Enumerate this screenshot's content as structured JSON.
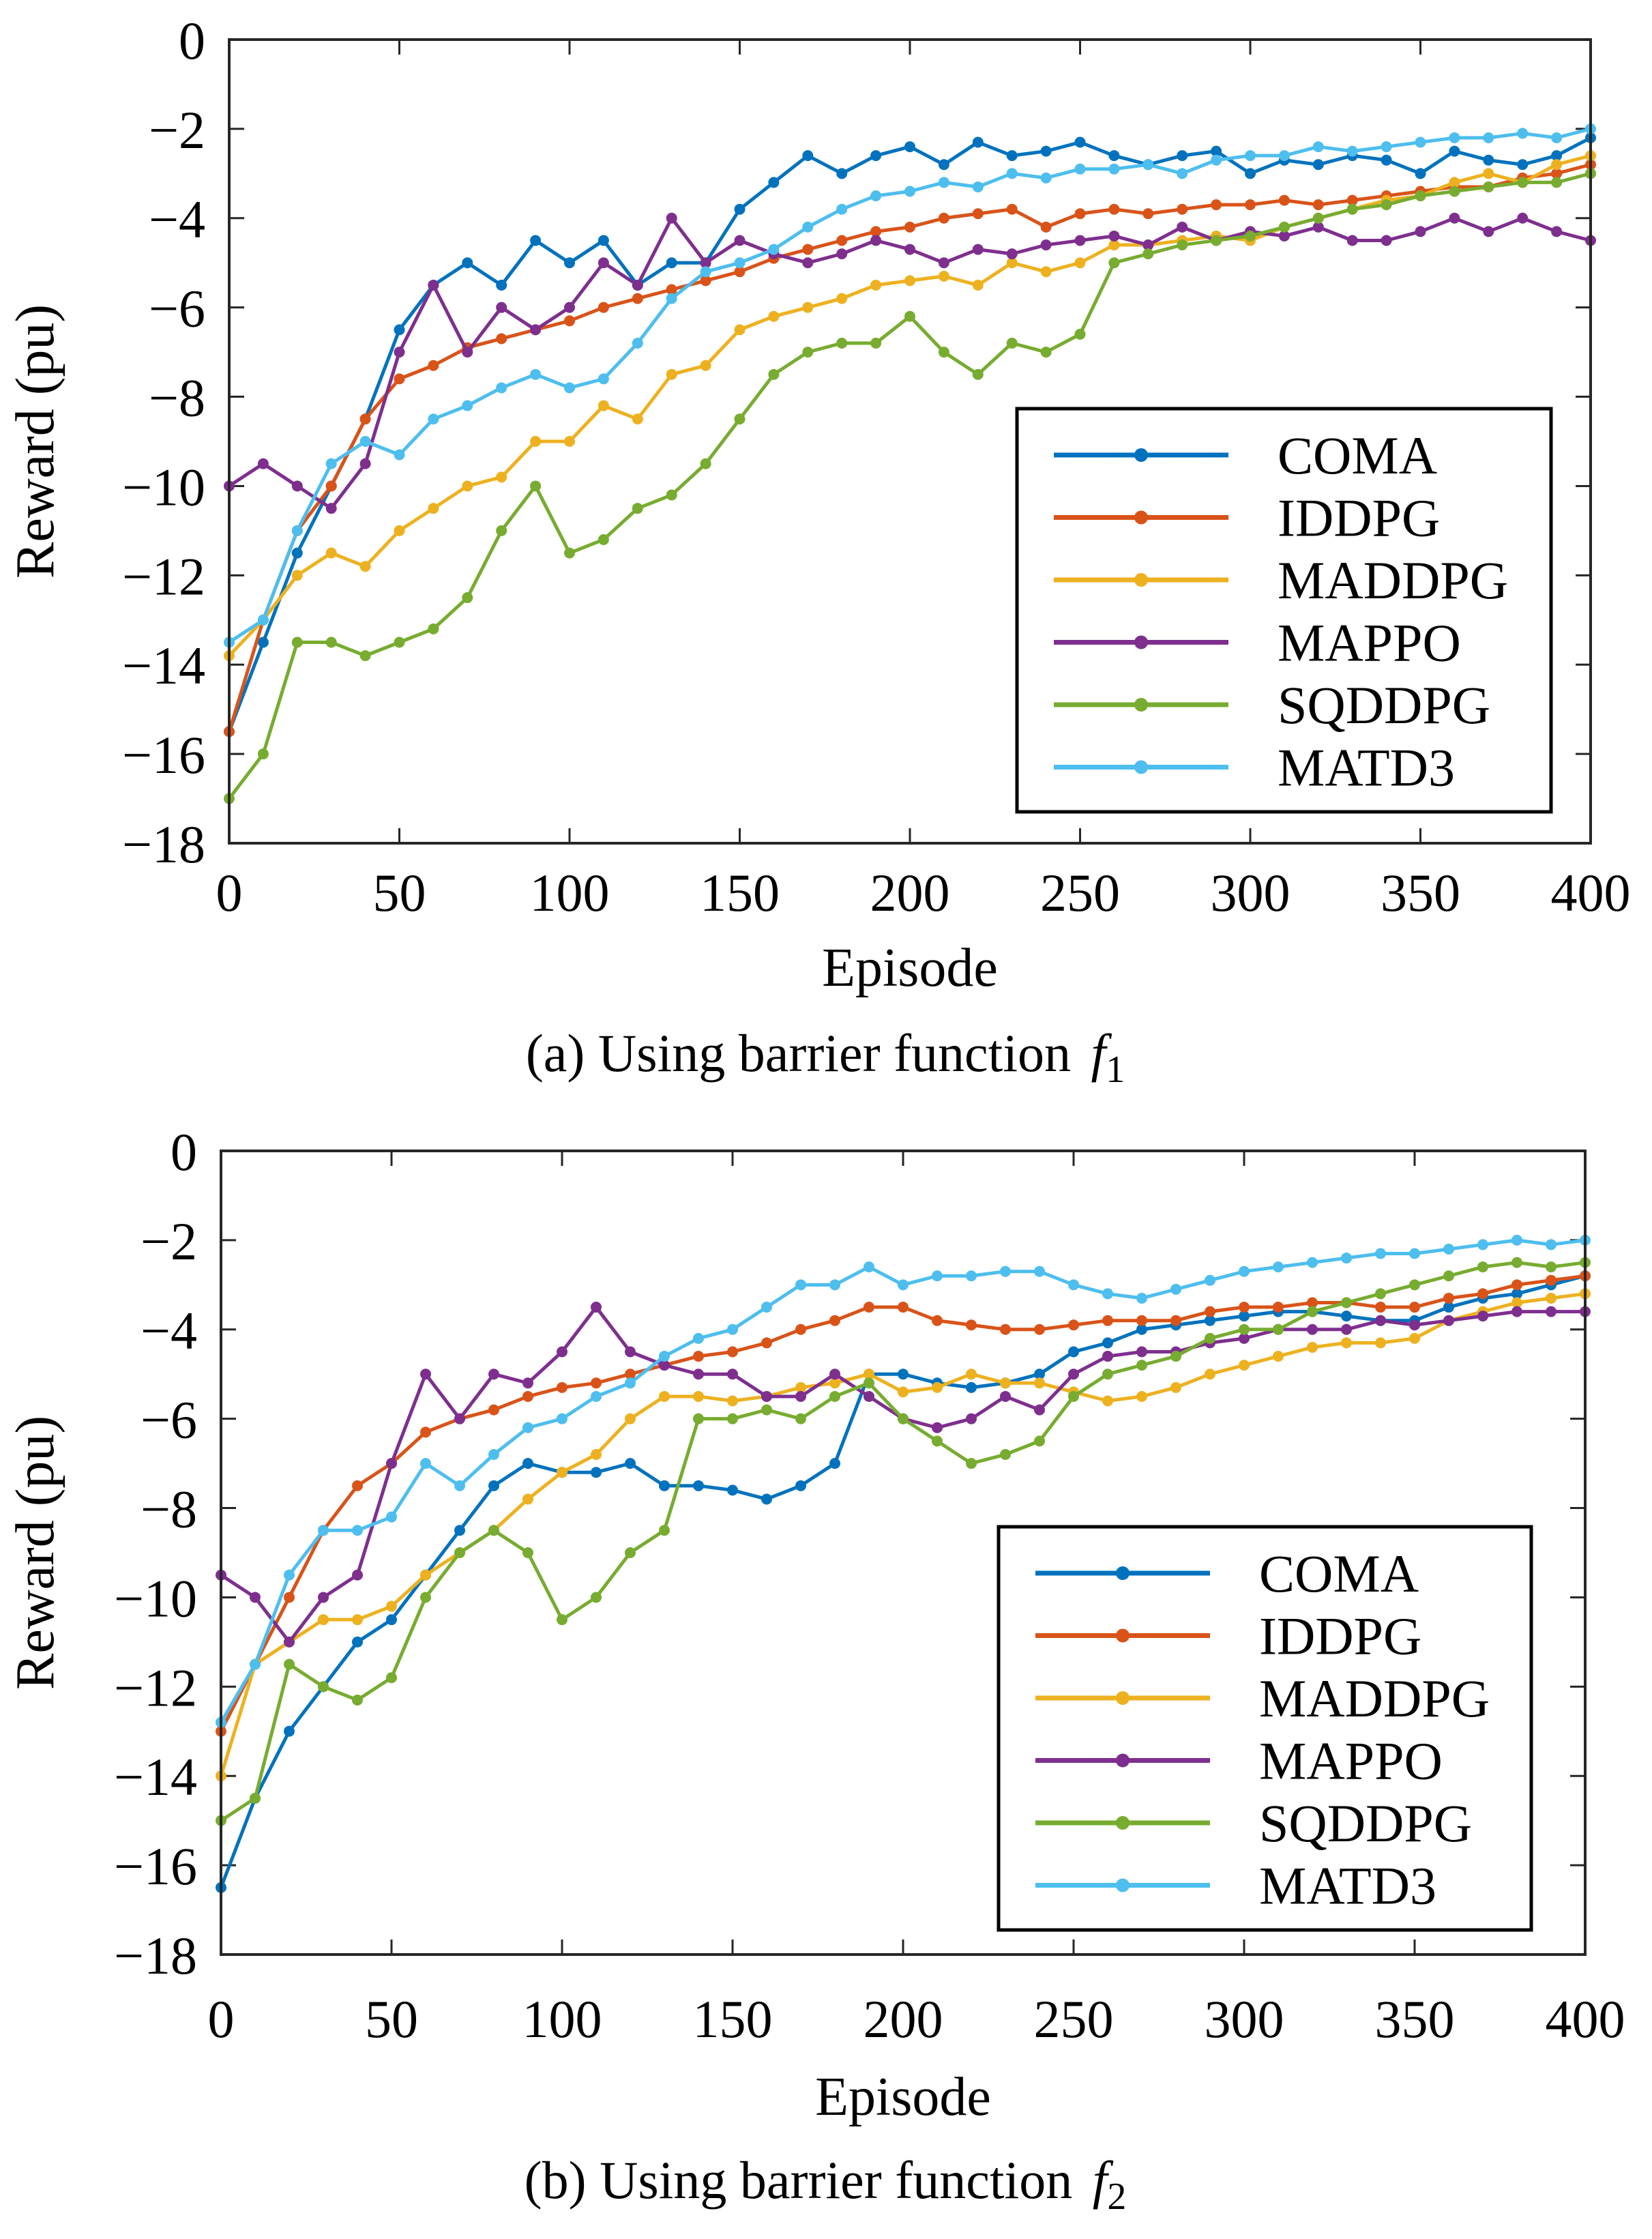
{
  "colors": {
    "COMA": "#0072BD",
    "IDDPG": "#D95319",
    "MADDPG": "#EDB120",
    "MAPPO": "#7E2F8E",
    "SQDDPG": "#77AC30",
    "MATD3": "#4DBEEE"
  },
  "chart_data": [
    {
      "type": "line",
      "caption_prefix": "(a) Using barrier function ",
      "caption_var": "f",
      "caption_sub": "1",
      "xlabel": "Episode",
      "ylabel": "Reward (pu)",
      "xlim": [
        0,
        400
      ],
      "ylim": [
        -18,
        0
      ],
      "xticks": [
        "0",
        "50",
        "100",
        "150",
        "200",
        "250",
        "300",
        "350",
        "400"
      ],
      "yticks": [
        "0",
        "−2",
        "−4",
        "−6",
        "−8",
        "−10",
        "−12",
        "−14",
        "−16",
        "−18"
      ],
      "grid": false,
      "legend_position": "lower-right",
      "x": [
        0,
        10,
        20,
        30,
        40,
        50,
        60,
        70,
        80,
        90,
        100,
        110,
        120,
        130,
        140,
        150,
        160,
        170,
        180,
        190,
        200,
        210,
        220,
        230,
        240,
        250,
        260,
        270,
        280,
        290,
        300,
        310,
        320,
        330,
        340,
        350,
        360,
        370,
        380,
        390,
        400
      ],
      "series": [
        {
          "name": "COMA",
          "values": [
            -15.5,
            -13.5,
            -11.5,
            -10,
            -8.5,
            -6.5,
            -5.5,
            -5,
            -5.5,
            -4.5,
            -5,
            -4.5,
            -5.5,
            -5,
            -5,
            -3.8,
            -3.2,
            -2.6,
            -3,
            -2.6,
            -2.4,
            -2.8,
            -2.3,
            -2.6,
            -2.5,
            -2.3,
            -2.6,
            -2.8,
            -2.6,
            -2.5,
            -3,
            -2.7,
            -2.8,
            -2.6,
            -2.7,
            -3,
            -2.5,
            -2.7,
            -2.8,
            -2.6,
            -2.2
          ]
        },
        {
          "name": "IDDPG",
          "values": [
            -15.5,
            -13,
            -11,
            -10,
            -8.5,
            -7.6,
            -7.3,
            -6.9,
            -6.7,
            -6.5,
            -6.3,
            -6,
            -5.8,
            -5.6,
            -5.4,
            -5.2,
            -4.9,
            -4.7,
            -4.5,
            -4.3,
            -4.2,
            -4,
            -3.9,
            -3.8,
            -4.2,
            -3.9,
            -3.8,
            -3.9,
            -3.8,
            -3.7,
            -3.7,
            -3.6,
            -3.7,
            -3.6,
            -3.5,
            -3.4,
            -3.3,
            -3.3,
            -3.1,
            -3,
            -2.8
          ]
        },
        {
          "name": "MADDPG",
          "values": [
            -13.8,
            -13,
            -12,
            -11.5,
            -11.8,
            -11,
            -10.5,
            -10,
            -9.8,
            -9,
            -9,
            -8.2,
            -8.5,
            -7.5,
            -7.3,
            -6.5,
            -6.2,
            -6,
            -5.8,
            -5.5,
            -5.4,
            -5.3,
            -5.5,
            -5,
            -5.2,
            -5,
            -4.6,
            -4.6,
            -4.5,
            -4.4,
            -4.5,
            -4.2,
            -4,
            -3.8,
            -3.6,
            -3.5,
            -3.2,
            -3,
            -3.2,
            -2.8,
            -2.6
          ]
        },
        {
          "name": "MAPPO",
          "values": [
            -10,
            -9.5,
            -10,
            -10.5,
            -9.5,
            -7,
            -5.5,
            -7,
            -6,
            -6.5,
            -6,
            -5,
            -5.5,
            -4,
            -5,
            -4.5,
            -4.8,
            -5,
            -4.8,
            -4.5,
            -4.7,
            -5,
            -4.7,
            -4.8,
            -4.6,
            -4.5,
            -4.4,
            -4.6,
            -4.2,
            -4.5,
            -4.3,
            -4.4,
            -4.2,
            -4.5,
            -4.5,
            -4.3,
            -4,
            -4.3,
            -4,
            -4.3,
            -4.5
          ]
        },
        {
          "name": "SQDDPG",
          "values": [
            -17,
            -16,
            -13.5,
            -13.5,
            -13.8,
            -13.5,
            -13.2,
            -12.5,
            -11,
            -10,
            -11.5,
            -11.2,
            -10.5,
            -10.2,
            -9.5,
            -8.5,
            -7.5,
            -7,
            -6.8,
            -6.8,
            -6.2,
            -7,
            -7.5,
            -6.8,
            -7,
            -6.6,
            -5,
            -4.8,
            -4.6,
            -4.5,
            -4.4,
            -4.2,
            -4,
            -3.8,
            -3.7,
            -3.5,
            -3.4,
            -3.3,
            -3.2,
            -3.2,
            -3
          ]
        },
        {
          "name": "MATD3",
          "values": [
            -13.5,
            -13,
            -11,
            -9.5,
            -9,
            -9.3,
            -8.5,
            -8.2,
            -7.8,
            -7.5,
            -7.8,
            -7.6,
            -6.8,
            -5.8,
            -5.2,
            -5,
            -4.7,
            -4.2,
            -3.8,
            -3.5,
            -3.4,
            -3.2,
            -3.3,
            -3,
            -3.1,
            -2.9,
            -2.9,
            -2.8,
            -3,
            -2.7,
            -2.6,
            -2.6,
            -2.4,
            -2.5,
            -2.4,
            -2.3,
            -2.2,
            -2.2,
            -2.1,
            -2.2,
            -2
          ]
        }
      ]
    },
    {
      "type": "line",
      "caption_prefix": "(b) Using barrier function ",
      "caption_var": "f",
      "caption_sub": "2",
      "xlabel": "Episode",
      "ylabel": "Reward (pu)",
      "xlim": [
        0,
        400
      ],
      "ylim": [
        -18,
        0
      ],
      "xticks": [
        "0",
        "50",
        "100",
        "150",
        "200",
        "250",
        "300",
        "350",
        "400"
      ],
      "yticks": [
        "0",
        "−2",
        "−4",
        "−6",
        "−8",
        "−10",
        "−12",
        "−14",
        "−16",
        "−18"
      ],
      "grid": false,
      "legend_position": "lower-right",
      "x": [
        0,
        10,
        20,
        30,
        40,
        50,
        60,
        70,
        80,
        90,
        100,
        110,
        120,
        130,
        140,
        150,
        160,
        170,
        180,
        190,
        200,
        210,
        220,
        230,
        240,
        250,
        260,
        270,
        280,
        290,
        300,
        310,
        320,
        330,
        340,
        350,
        360,
        370,
        380,
        390,
        400
      ],
      "series": [
        {
          "name": "COMA",
          "values": [
            -16.5,
            -14.5,
            -13,
            -12,
            -11,
            -10.5,
            -9.5,
            -8.5,
            -7.5,
            -7,
            -7.2,
            -7.2,
            -7,
            -7.5,
            -7.5,
            -7.6,
            -7.8,
            -7.5,
            -7,
            -5,
            -5,
            -5.2,
            -5.3,
            -5.2,
            -5,
            -4.5,
            -4.3,
            -4,
            -3.9,
            -3.8,
            -3.7,
            -3.6,
            -3.6,
            -3.7,
            -3.8,
            -3.8,
            -3.5,
            -3.3,
            -3.2,
            -3,
            -2.8
          ]
        },
        {
          "name": "IDDPG",
          "values": [
            -13,
            -11.5,
            -10,
            -8.5,
            -7.5,
            -7,
            -6.3,
            -6,
            -5.8,
            -5.5,
            -5.3,
            -5.2,
            -5,
            -4.8,
            -4.6,
            -4.5,
            -4.3,
            -4,
            -3.8,
            -3.5,
            -3.5,
            -3.8,
            -3.9,
            -4,
            -4,
            -3.9,
            -3.8,
            -3.8,
            -3.8,
            -3.6,
            -3.5,
            -3.5,
            -3.4,
            -3.4,
            -3.5,
            -3.5,
            -3.3,
            -3.2,
            -3,
            -2.9,
            -2.8
          ]
        },
        {
          "name": "MADDPG",
          "values": [
            -14,
            -11.5,
            -11,
            -10.5,
            -10.5,
            -10.2,
            -9.5,
            -9,
            -8.5,
            -7.8,
            -7.2,
            -6.8,
            -6,
            -5.5,
            -5.5,
            -5.6,
            -5.5,
            -5.3,
            -5.2,
            -5,
            -5.4,
            -5.3,
            -5,
            -5.2,
            -5.2,
            -5.4,
            -5.6,
            -5.5,
            -5.3,
            -5,
            -4.8,
            -4.6,
            -4.4,
            -4.3,
            -4.3,
            -4.2,
            -3.8,
            -3.6,
            -3.4,
            -3.3,
            -3.2
          ]
        },
        {
          "name": "MAPPO",
          "values": [
            -9.5,
            -10,
            -11,
            -10,
            -9.5,
            -7,
            -5,
            -6,
            -5,
            -5.2,
            -4.5,
            -3.5,
            -4.5,
            -4.8,
            -5,
            -5,
            -5.5,
            -5.5,
            -5,
            -5.5,
            -6,
            -6.2,
            -6,
            -5.5,
            -5.8,
            -5,
            -4.6,
            -4.5,
            -4.5,
            -4.3,
            -4.2,
            -4,
            -4,
            -4,
            -3.8,
            -3.9,
            -3.8,
            -3.7,
            -3.6,
            -3.6,
            -3.6
          ]
        },
        {
          "name": "SQDDPG",
          "values": [
            -15,
            -14.5,
            -11.5,
            -12,
            -12.3,
            -11.8,
            -10,
            -9,
            -8.5,
            -9,
            -10.5,
            -10,
            -9,
            -8.5,
            -6,
            -6,
            -5.8,
            -6,
            -5.5,
            -5.2,
            -6,
            -6.5,
            -7,
            -6.8,
            -6.5,
            -5.5,
            -5,
            -4.8,
            -4.6,
            -4.2,
            -4,
            -4,
            -3.6,
            -3.4,
            -3.2,
            -3,
            -2.8,
            -2.6,
            -2.5,
            -2.6,
            -2.5
          ]
        },
        {
          "name": "MATD3",
          "values": [
            -12.8,
            -11.5,
            -9.5,
            -8.5,
            -8.5,
            -8.2,
            -7,
            -7.5,
            -6.8,
            -6.2,
            -6,
            -5.5,
            -5.2,
            -4.6,
            -4.2,
            -4,
            -3.5,
            -3,
            -3,
            -2.6,
            -3,
            -2.8,
            -2.8,
            -2.7,
            -2.7,
            -3,
            -3.2,
            -3.3,
            -3.1,
            -2.9,
            -2.7,
            -2.6,
            -2.5,
            -2.4,
            -2.3,
            -2.3,
            -2.2,
            -2.1,
            -2,
            -2.1,
            -2
          ]
        }
      ]
    }
  ]
}
